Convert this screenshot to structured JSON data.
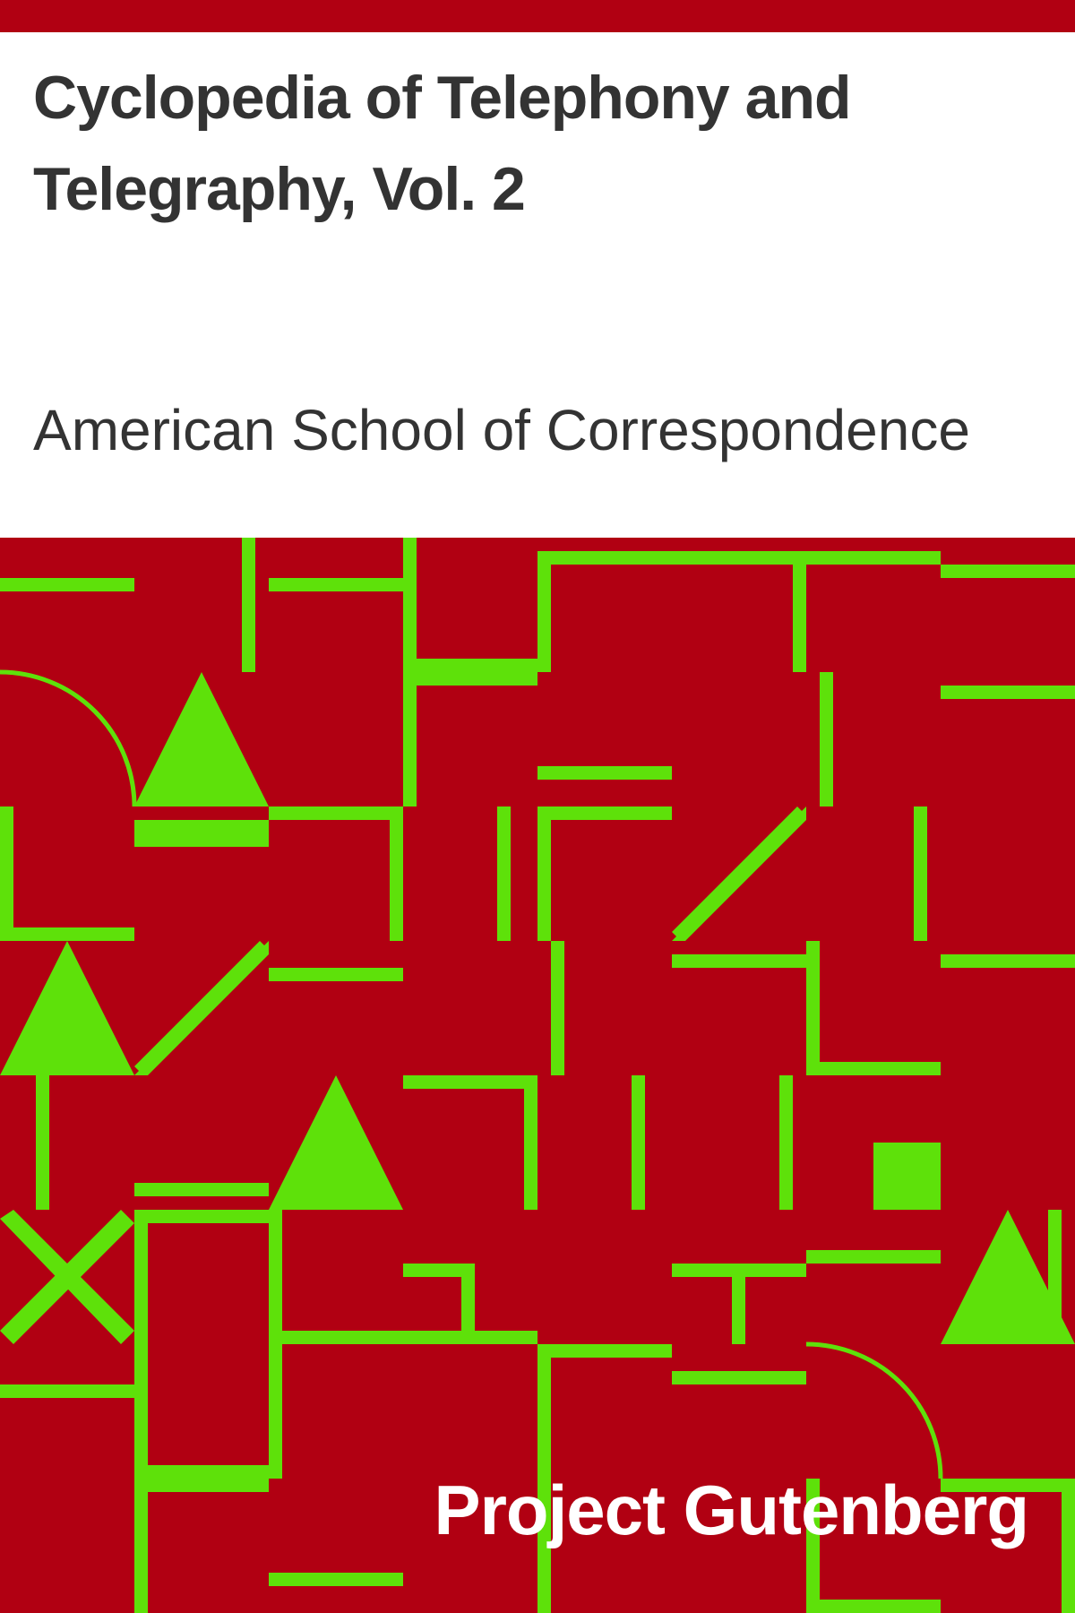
{
  "cover": {
    "title": "Cyclopedia of Telephony and Telegraphy, Vol. 2",
    "author": "American School of Correspondence",
    "publisher": "Project Gutenberg"
  },
  "colors": {
    "background": "#b10012",
    "title_panel": "#ffffff",
    "text": "#333333",
    "pattern": "#5ee10a",
    "publisher_text": "#ffffff"
  }
}
